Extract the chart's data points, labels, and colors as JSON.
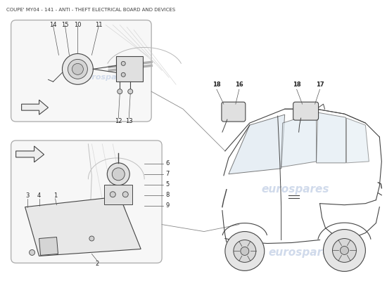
{
  "title": "COUPE' MY04 - 141 - ANTI - THEFT ELECTRICAL BOARD AND DEVICES",
  "title_fontsize": 5.0,
  "bg_color": "#ffffff",
  "watermark_text": "eurospares",
  "watermark_color": "#c8d4e8",
  "watermark_fontsize": 11
}
